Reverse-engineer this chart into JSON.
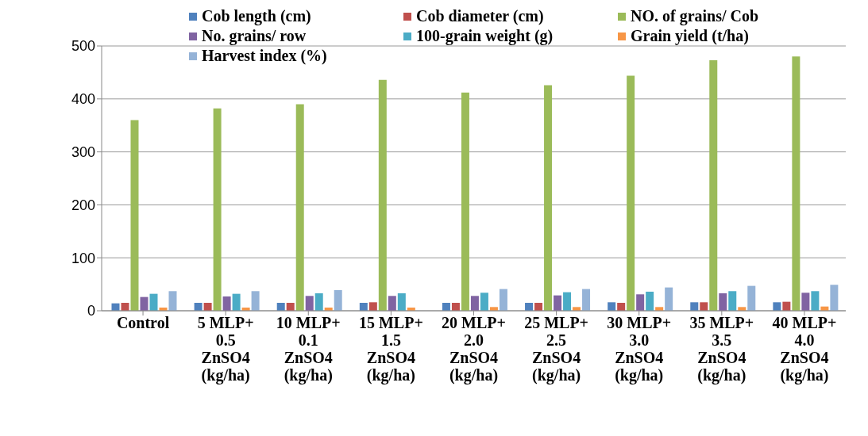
{
  "chart_data": {
    "type": "bar",
    "categories": [
      "Control",
      "5 MLP+ 0.5 ZnSO4 (kg/ha)",
      "10 MLP+ 0.1 ZnSO4 (kg/ha)",
      "15 MLP+ 1.5 ZnSO4 (kg/ha)",
      "20 MLP+ 2.0 ZnSO4 (kg/ha)",
      "25 MLP+ 2.5 ZnSO4 (kg/ha)",
      "30 MLP+ 3.0 ZnSO4 (kg/ha)",
      "35 MLP+ 3.5 ZnSO4 (kg/ha)",
      "40 MLP+ 4.0 ZnSO4 (kg/ha)"
    ],
    "series": [
      {
        "name": "Cob length (cm)",
        "color": "#4f81bd",
        "values": [
          14,
          15,
          15,
          15,
          15,
          15,
          16,
          16,
          16
        ]
      },
      {
        "name": "Cob diameter (cm)",
        "color": "#c0504d",
        "values": [
          15,
          15,
          15,
          16,
          15,
          15,
          15,
          16,
          17
        ]
      },
      {
        "name": "NO. of grains/ Cob",
        "color": "#9bbb59",
        "values": [
          360,
          382,
          390,
          436,
          412,
          426,
          444,
          473,
          480
        ]
      },
      {
        "name": "No. grains/ row",
        "color": "#8064a2",
        "values": [
          26,
          27,
          28,
          28,
          28,
          29,
          31,
          33,
          34
        ]
      },
      {
        "name": "100-grain weight (g)",
        "color": "#4bacc6",
        "values": [
          32,
          32,
          33,
          33,
          34,
          35,
          36,
          37,
          37
        ]
      },
      {
        "name": "Grain yield (t/ha)",
        "color": "#f79646",
        "values": [
          6,
          6,
          6,
          6,
          7,
          7,
          7,
          7,
          8
        ]
      },
      {
        "name": "Harvest index (%)",
        "color": "#95b3d7",
        "values": [
          37,
          37,
          39,
          null,
          41,
          41,
          44,
          47,
          49
        ]
      }
    ],
    "ylim": [
      0,
      500
    ],
    "yticks": [
      0,
      100,
      200,
      300,
      400,
      500
    ],
    "grid": "y",
    "legend": "top"
  }
}
